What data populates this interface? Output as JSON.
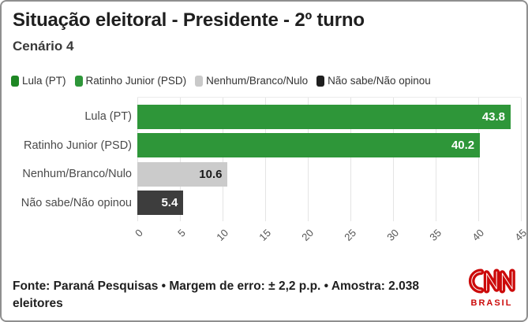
{
  "header": {
    "title": "Situação eleitoral - Presidente - 2º turno",
    "subtitle": "Cenário 4"
  },
  "legend": {
    "items": [
      {
        "label": "Lula (PT)",
        "color": "#1e8724"
      },
      {
        "label": "Ratinho Junior (PSD)",
        "color": "#2e9639"
      },
      {
        "label": "Nenhum/Branco/Nulo",
        "color": "#c9c9c9"
      },
      {
        "label": "Não sabe/Não opinou",
        "color": "#1f1f1f"
      }
    ]
  },
  "chart_data": {
    "type": "bar",
    "orientation": "horizontal",
    "title": "Situação eleitoral - Presidente - 2º turno",
    "subtitle": "Cenário 4",
    "categories": [
      "Lula (PT)",
      "Ratinho Junior (PSD)",
      "Nenhum/Branco/Nulo",
      "Não sabe/Não opinou"
    ],
    "values": [
      43.8,
      40.2,
      10.6,
      5.4
    ],
    "value_labels": [
      "43.8",
      "40.2",
      "10.6",
      "5.4"
    ],
    "bar_colors": [
      "#2e9639",
      "#2e9639",
      "#cbcbcb",
      "#3d3d3d"
    ],
    "value_label_colors": [
      "#ffffff",
      "#ffffff",
      "#1a1a1a",
      "#ffffff"
    ],
    "xlim": [
      0,
      45
    ],
    "xticks": [
      0,
      5,
      10,
      15,
      20,
      25,
      30,
      35,
      40,
      45
    ],
    "grid": "vertical",
    "gridline_color": "#e4e4e4",
    "legend_position": "top"
  },
  "footer": {
    "source_text": "Fonte: Paraná Pesquisas • Margem de erro: ± 2,2 p.p. • Amostra: 2.038 eleitores",
    "logo": {
      "text": "CNN",
      "subtext": "BRASIL",
      "color": "#cc0a0a"
    }
  }
}
